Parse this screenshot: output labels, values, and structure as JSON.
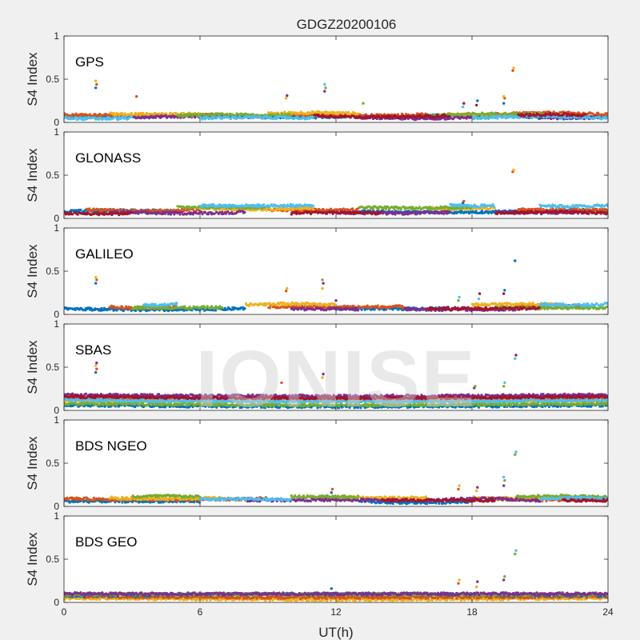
{
  "chart_data": {
    "type": "scatter",
    "title": "GDGZ20200106",
    "xlabel": "UT(h)",
    "ylabel": "S4 Index",
    "xlim": [
      0,
      24
    ],
    "ylim": [
      0,
      1
    ],
    "xticks": [
      "0",
      "6",
      "12",
      "18",
      "24"
    ],
    "yticks": [
      "0",
      "0.5",
      "1"
    ],
    "watermark": "IONISE",
    "colors": [
      "#0072BD",
      "#D95319",
      "#EDB120",
      "#7E2F8E",
      "#77AC30",
      "#4DBEEE",
      "#A2142F"
    ],
    "panels": [
      {
        "name": "GPS",
        "series": [
          {
            "color": "#0072BD",
            "base": 0.07,
            "segments": [
              [
                0,
                4
              ],
              [
                8,
                12.5
              ],
              [
                15,
                19
              ],
              [
                20,
                24
              ]
            ]
          },
          {
            "color": "#D95319",
            "base": 0.09,
            "segments": [
              [
                0,
                7
              ],
              [
                10,
                16
              ],
              [
                19,
                24
              ]
            ]
          },
          {
            "color": "#EDB120",
            "base": 0.1,
            "segments": [
              [
                2,
                6
              ],
              [
                9,
                13
              ],
              [
                17,
                21
              ]
            ]
          },
          {
            "color": "#7E2F8E",
            "base": 0.06,
            "segments": [
              [
                3,
                9
              ],
              [
                13,
                18
              ],
              [
                21,
                24
              ]
            ]
          },
          {
            "color": "#77AC30",
            "base": 0.08,
            "segments": [
              [
                5,
                10
              ],
              [
                16,
                22
              ]
            ]
          },
          {
            "color": "#4DBEEE",
            "base": 0.05,
            "segments": [
              [
                0,
                3
              ],
              [
                6,
                11
              ],
              [
                18,
                24
              ]
            ]
          },
          {
            "color": "#A2142F",
            "base": 0.08,
            "segments": [
              [
                11,
                17
              ],
              [
                20,
                23
              ]
            ]
          }
        ],
        "spikes": [
          {
            "x": 1.4,
            "y": [
              0.4,
              0.44,
              0.48
            ]
          },
          {
            "x": 3.2,
            "y": [
              0.3
            ]
          },
          {
            "x": 9.8,
            "y": [
              0.28,
              0.31
            ]
          },
          {
            "x": 11.5,
            "y": [
              0.36,
              0.4,
              0.44
            ]
          },
          {
            "x": 13.2,
            "y": [
              0.22
            ]
          },
          {
            "x": 17.6,
            "y": [
              0.18,
              0.22
            ]
          },
          {
            "x": 18.2,
            "y": [
              0.2,
              0.25
            ]
          },
          {
            "x": 19.4,
            "y": [
              0.22,
              0.28,
              0.3
            ]
          },
          {
            "x": 19.8,
            "y": [
              0.6,
              0.63
            ]
          }
        ]
      },
      {
        "name": "GLONASS",
        "series": [
          {
            "color": "#0072BD",
            "base": 0.08,
            "segments": [
              [
                0,
                5
              ],
              [
                13,
                20
              ],
              [
                21,
                24
              ]
            ]
          },
          {
            "color": "#D95319",
            "base": 0.1,
            "segments": [
              [
                1,
                6
              ],
              [
                9,
                13
              ],
              [
                20,
                24
              ]
            ]
          },
          {
            "color": "#EDB120",
            "base": 0.12,
            "segments": [
              [
                6,
                11
              ],
              [
                16,
                19
              ]
            ]
          },
          {
            "color": "#7E2F8E",
            "base": 0.07,
            "segments": [
              [
                2,
                8
              ],
              [
                12,
                17
              ],
              [
                19,
                23
              ]
            ]
          },
          {
            "color": "#77AC30",
            "base": 0.13,
            "segments": [
              [
                5,
                9
              ],
              [
                13,
                18
              ]
            ]
          },
          {
            "color": "#4DBEEE",
            "base": 0.15,
            "segments": [
              [
                6,
                11
              ],
              [
                17,
                19
              ],
              [
                21,
                24
              ]
            ]
          },
          {
            "color": "#A2142F",
            "base": 0.06,
            "segments": [
              [
                0,
                3
              ],
              [
                10,
                14
              ],
              [
                19,
                24
              ]
            ]
          }
        ],
        "spikes": [
          {
            "x": 17.6,
            "y": [
              0.18,
              0.2
            ]
          },
          {
            "x": 19.8,
            "y": [
              0.54,
              0.56
            ]
          }
        ]
      },
      {
        "name": "GALILEO",
        "series": [
          {
            "color": "#0072BD",
            "base": 0.07,
            "segments": [
              [
                0,
                8
              ],
              [
                12,
                17
              ]
            ]
          },
          {
            "color": "#D95319",
            "base": 0.09,
            "segments": [
              [
                2,
                5
              ],
              [
                9,
                15
              ],
              [
                20,
                23
              ]
            ]
          },
          {
            "color": "#EDB120",
            "base": 0.11,
            "segments": [
              [
                8,
                12
              ],
              [
                18,
                22
              ]
            ]
          },
          {
            "color": "#7E2F8E",
            "base": 0.06,
            "segments": [
              [
                10,
                13
              ],
              [
                15,
                20
              ]
            ]
          },
          {
            "color": "#77AC30",
            "base": 0.08,
            "segments": [
              [
                3,
                7
              ],
              [
                19,
                24
              ]
            ]
          },
          {
            "color": "#4DBEEE",
            "base": 0.12,
            "segments": [
              [
                3.5,
                5
              ],
              [
                21,
                24
              ]
            ]
          },
          {
            "color": "#A2142F",
            "base": 0.07,
            "segments": [
              [
                16,
                21
              ]
            ]
          }
        ],
        "spikes": [
          {
            "x": 1.4,
            "y": [
              0.36,
              0.4,
              0.43
            ]
          },
          {
            "x": 9.8,
            "y": [
              0.27,
              0.3
            ]
          },
          {
            "x": 11.4,
            "y": [
              0.3,
              0.36,
              0.4
            ]
          },
          {
            "x": 12.0,
            "y": [
              0.16
            ]
          },
          {
            "x": 17.4,
            "y": [
              0.16,
              0.2
            ]
          },
          {
            "x": 18.3,
            "y": [
              0.18,
              0.24
            ]
          },
          {
            "x": 19.4,
            "y": [
              0.24,
              0.28
            ]
          },
          {
            "x": 19.9,
            "y": [
              0.62
            ]
          }
        ]
      },
      {
        "name": "SBAS",
        "series": [
          {
            "color": "#0072BD",
            "base": 0.06,
            "segments": [
              [
                0,
                24
              ]
            ]
          },
          {
            "color": "#D95319",
            "base": 0.14,
            "segments": [
              [
                0,
                24
              ]
            ]
          },
          {
            "color": "#EDB120",
            "base": 0.1,
            "segments": [
              [
                0,
                24
              ]
            ]
          },
          {
            "color": "#7E2F8E",
            "base": 0.18,
            "segments": [
              [
                0,
                24
              ]
            ]
          },
          {
            "color": "#77AC30",
            "base": 0.08,
            "segments": [
              [
                0,
                24
              ]
            ]
          },
          {
            "color": "#4DBEEE",
            "base": 0.12,
            "segments": [
              [
                0,
                24
              ]
            ]
          },
          {
            "color": "#A2142F",
            "base": 0.16,
            "segments": [
              [
                0,
                24
              ]
            ]
          }
        ],
        "spikes": [
          {
            "x": 1.4,
            "y": [
              0.44,
              0.48,
              0.52,
              0.55
            ]
          },
          {
            "x": 9.6,
            "y": [
              0.32
            ]
          },
          {
            "x": 11.4,
            "y": [
              0.38,
              0.42
            ]
          },
          {
            "x": 18.1,
            "y": [
              0.26,
              0.28
            ]
          },
          {
            "x": 19.4,
            "y": [
              0.28,
              0.32
            ]
          },
          {
            "x": 19.9,
            "y": [
              0.6,
              0.64
            ]
          }
        ]
      },
      {
        "name": "BDS NGEO",
        "series": [
          {
            "color": "#0072BD",
            "base": 0.06,
            "segments": [
              [
                0,
                6
              ],
              [
                13,
                18
              ]
            ]
          },
          {
            "color": "#D95319",
            "base": 0.09,
            "segments": [
              [
                0,
                9
              ],
              [
                19,
                24
              ]
            ]
          },
          {
            "color": "#EDB120",
            "base": 0.1,
            "segments": [
              [
                2,
                7
              ],
              [
                11,
                16
              ],
              [
                18,
                22
              ]
            ]
          },
          {
            "color": "#7E2F8E",
            "base": 0.07,
            "segments": [
              [
                8,
                15
              ],
              [
                16,
                21
              ]
            ]
          },
          {
            "color": "#77AC30",
            "base": 0.11,
            "segments": [
              [
                3,
                6
              ],
              [
                10,
                13
              ],
              [
                20,
                24
              ]
            ]
          },
          {
            "color": "#4DBEEE",
            "base": 0.08,
            "segments": [
              [
                6,
                10
              ],
              [
                21,
                24
              ]
            ]
          },
          {
            "color": "#A2142F",
            "base": 0.07,
            "segments": [
              [
                14,
                19
              ],
              [
                22,
                24
              ]
            ]
          }
        ],
        "spikes": [
          {
            "x": 11.8,
            "y": [
              0.16,
              0.2
            ]
          },
          {
            "x": 17.4,
            "y": [
              0.2,
              0.24
            ]
          },
          {
            "x": 18.2,
            "y": [
              0.18,
              0.22
            ]
          },
          {
            "x": 19.4,
            "y": [
              0.24,
              0.3,
              0.34
            ]
          },
          {
            "x": 19.9,
            "y": [
              0.6,
              0.63
            ]
          }
        ]
      },
      {
        "name": "BDS GEO",
        "series": [
          {
            "color": "#EDB120",
            "base": 0.05,
            "segments": [
              [
                0,
                24
              ]
            ]
          },
          {
            "color": "#D95319",
            "base": 0.07,
            "segments": [
              [
                0,
                24
              ]
            ]
          },
          {
            "color": "#0072BD",
            "base": 0.08,
            "segments": [
              [
                0,
                24
              ]
            ]
          },
          {
            "color": "#77AC30",
            "base": 0.09,
            "segments": [
              [
                0,
                24
              ]
            ]
          },
          {
            "color": "#7E2F8E",
            "base": 0.1,
            "segments": [
              [
                0,
                24
              ]
            ]
          }
        ],
        "spikes": [
          {
            "x": 11.8,
            "y": [
              0.16
            ]
          },
          {
            "x": 17.4,
            "y": [
              0.22,
              0.26
            ]
          },
          {
            "x": 18.2,
            "y": [
              0.18,
              0.24
            ]
          },
          {
            "x": 19.4,
            "y": [
              0.26,
              0.3
            ]
          },
          {
            "x": 19.9,
            "y": [
              0.56,
              0.6
            ]
          }
        ]
      }
    ]
  }
}
